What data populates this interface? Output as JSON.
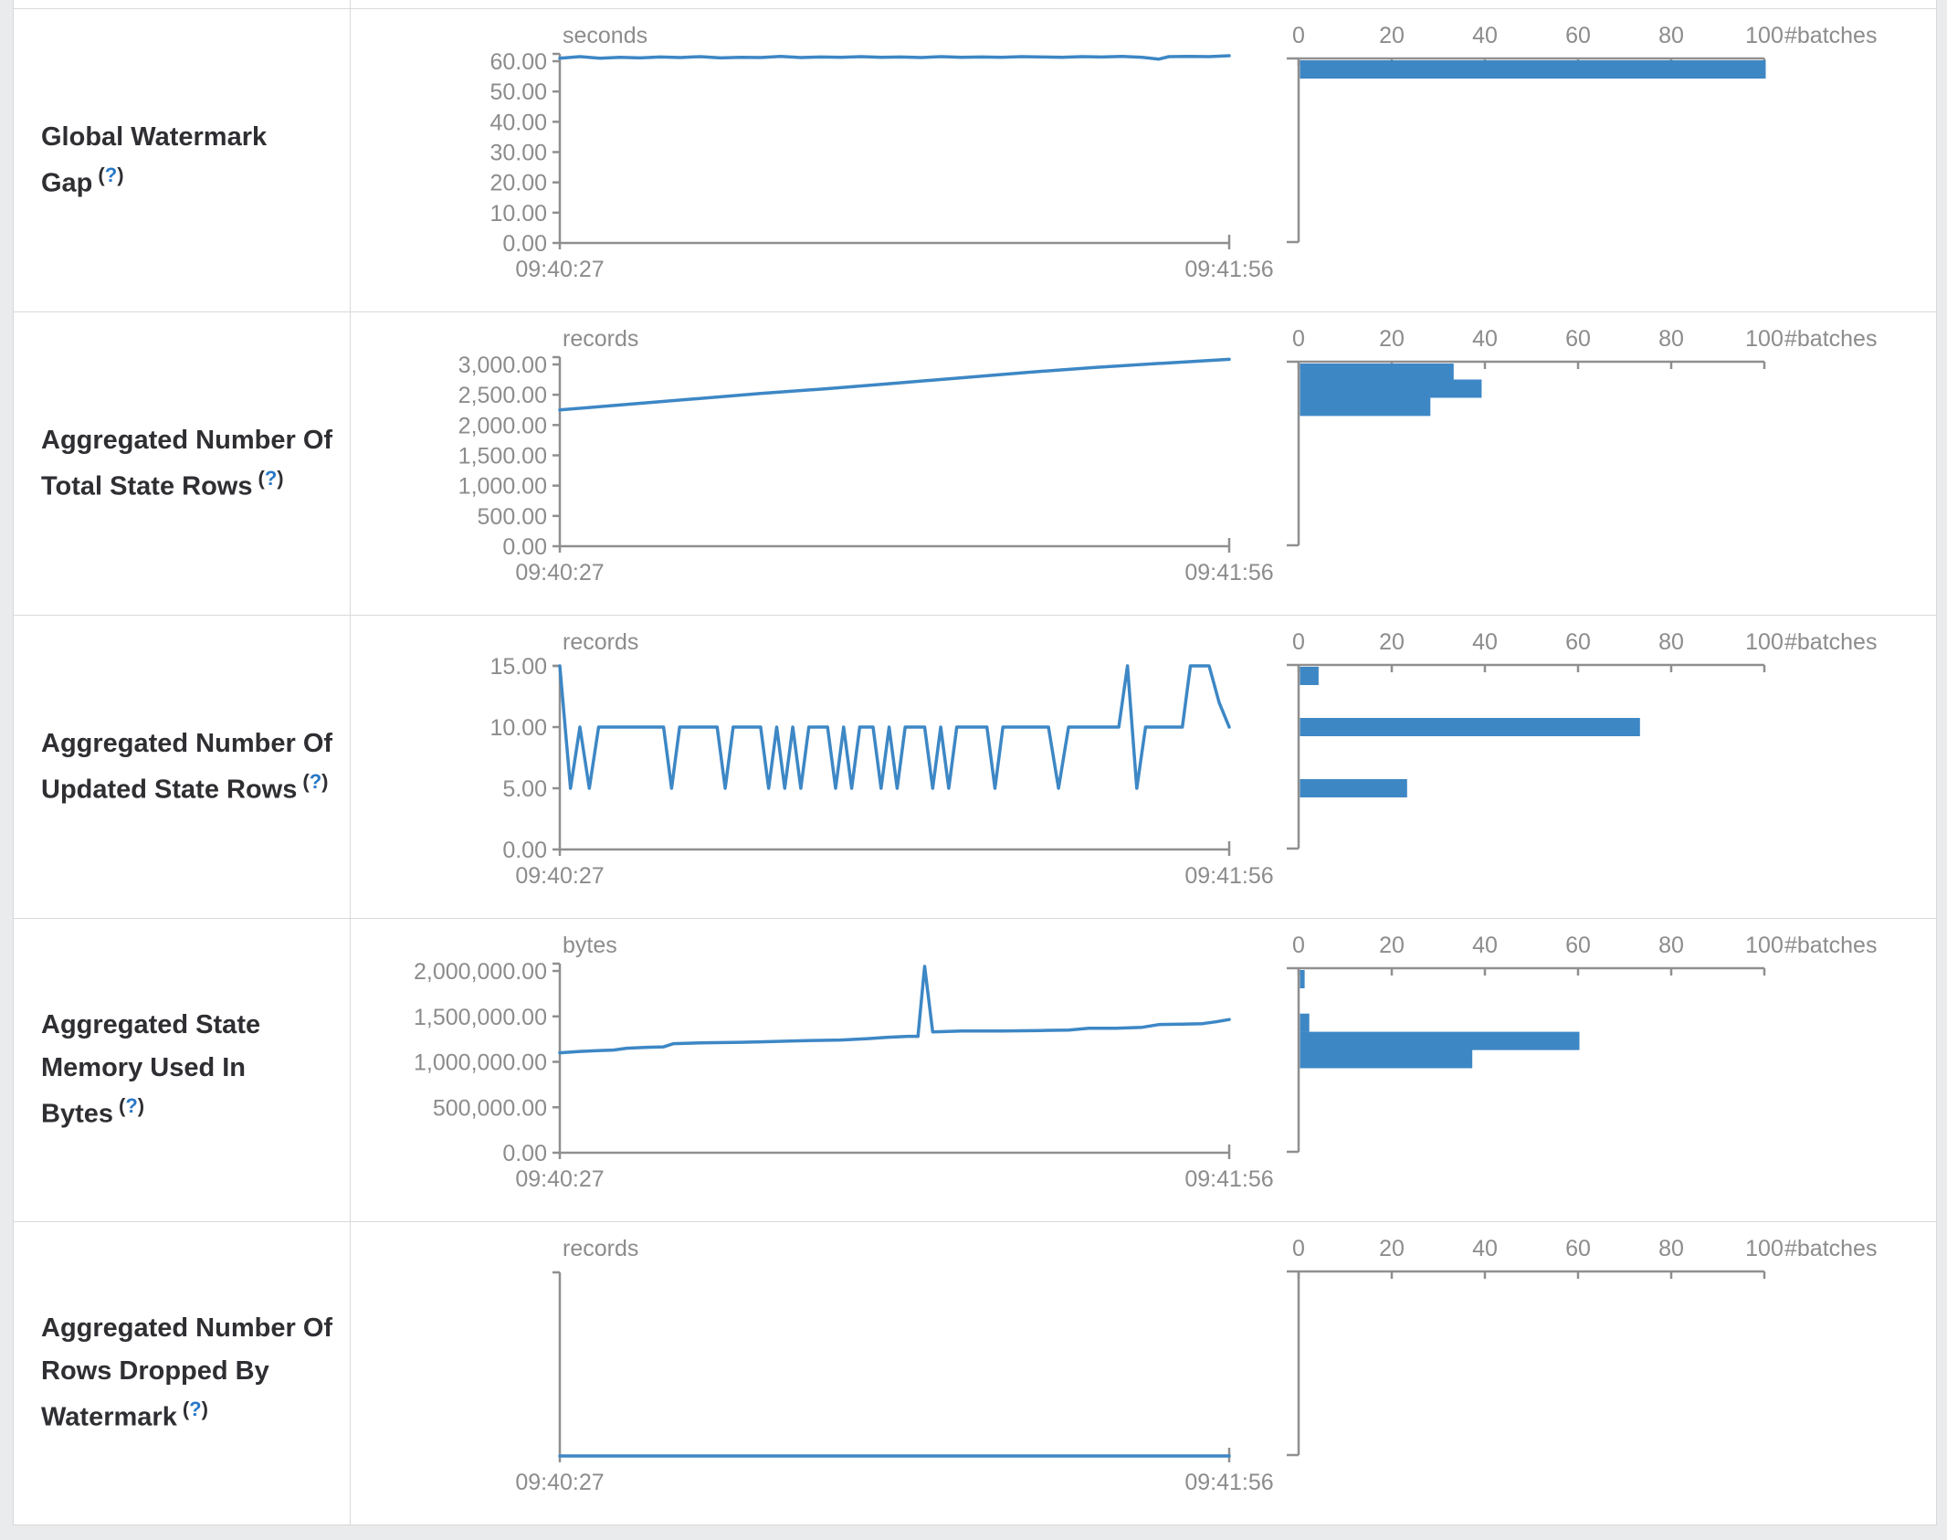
{
  "ui": {
    "help_open": "(",
    "help_q": "?",
    "help_close": ")"
  },
  "colors": {
    "accent": "#3d87c5",
    "axis_line": "#8f8f8f",
    "tick_text": "#8c8c8c",
    "label_text": "#2f2f33",
    "help_blue": "#2878c8",
    "border": "#d9d9d9",
    "page_background": "#e9ebed",
    "table_background": "#ffffff"
  },
  "histogram_axis": {
    "tick_labels": [
      "0",
      "20",
      "40",
      "60",
      "80",
      "100"
    ],
    "max": 100,
    "label": "#batches"
  },
  "chart_data": [
    {
      "type": "line+histogram",
      "label": "Global Watermark Gap",
      "units": "seconds",
      "x_start": "09:40:27",
      "x_end": "09:41:56",
      "y_scale_top_value": 60,
      "y_ticks": [
        {
          "value": 60,
          "label": "60.00"
        },
        {
          "value": 50,
          "label": "50.00"
        },
        {
          "value": 40,
          "label": "40.00"
        },
        {
          "value": 30,
          "label": "30.00"
        },
        {
          "value": 20,
          "label": "20.00"
        },
        {
          "value": 10,
          "label": "10.00"
        },
        {
          "value": 0,
          "label": "0.00"
        }
      ],
      "series": [
        [
          0,
          61.0
        ],
        [
          0.03,
          61.5
        ],
        [
          0.06,
          61.0
        ],
        [
          0.09,
          61.3
        ],
        [
          0.12,
          61.1
        ],
        [
          0.15,
          61.4
        ],
        [
          0.18,
          61.2
        ],
        [
          0.21,
          61.5
        ],
        [
          0.24,
          61.1
        ],
        [
          0.27,
          61.3
        ],
        [
          0.3,
          61.2
        ],
        [
          0.33,
          61.6
        ],
        [
          0.36,
          61.2
        ],
        [
          0.39,
          61.4
        ],
        [
          0.42,
          61.3
        ],
        [
          0.45,
          61.5
        ],
        [
          0.48,
          61.3
        ],
        [
          0.51,
          61.4
        ],
        [
          0.54,
          61.2
        ],
        [
          0.57,
          61.5
        ],
        [
          0.6,
          61.3
        ],
        [
          0.63,
          61.4
        ],
        [
          0.66,
          61.3
        ],
        [
          0.69,
          61.5
        ],
        [
          0.72,
          61.4
        ],
        [
          0.75,
          61.3
        ],
        [
          0.78,
          61.5
        ],
        [
          0.81,
          61.4
        ],
        [
          0.84,
          61.6
        ],
        [
          0.87,
          61.3
        ],
        [
          0.895,
          60.7
        ],
        [
          0.91,
          61.5
        ],
        [
          0.94,
          61.6
        ],
        [
          0.97,
          61.5
        ],
        [
          1,
          61.8
        ]
      ],
      "histogram_bars": [
        {
          "count": 100,
          "bin": 61
        }
      ]
    },
    {
      "type": "line+histogram",
      "label": "Aggregated Number Of Total State Rows",
      "units": "records",
      "x_start": "09:40:27",
      "x_end": "09:41:56",
      "y_scale_top_value": 3000,
      "y_ticks": [
        {
          "value": 3000,
          "label": "3,000.00"
        },
        {
          "value": 2500,
          "label": "2,500.00"
        },
        {
          "value": 2000,
          "label": "2,000.00"
        },
        {
          "value": 1500,
          "label": "1,500.00"
        },
        {
          "value": 1000,
          "label": "1,000.00"
        },
        {
          "value": 500,
          "label": "500.00"
        },
        {
          "value": 0,
          "label": "0.00"
        }
      ],
      "series": [
        [
          0,
          2250
        ],
        [
          0.1,
          2340
        ],
        [
          0.2,
          2430
        ],
        [
          0.3,
          2520
        ],
        [
          0.4,
          2600
        ],
        [
          0.5,
          2690
        ],
        [
          0.6,
          2780
        ],
        [
          0.7,
          2870
        ],
        [
          0.8,
          2950
        ],
        [
          0.9,
          3020
        ],
        [
          1,
          3085
        ]
      ],
      "histogram_bars": [
        {
          "count": 33,
          "bin": 2900
        },
        {
          "count": 39,
          "bin": 2600
        },
        {
          "count": 28,
          "bin": 2300
        }
      ]
    },
    {
      "type": "line+histogram",
      "label": "Aggregated Number Of Updated State Rows",
      "units": "records",
      "x_start": "09:40:27",
      "x_end": "09:41:56",
      "y_scale_top_value": 15,
      "y_ticks": [
        {
          "value": 15,
          "label": "15.00"
        },
        {
          "value": 10,
          "label": "10.00"
        },
        {
          "value": 5,
          "label": "5.00"
        },
        {
          "value": 0,
          "label": "0.00"
        }
      ],
      "series": [
        [
          0,
          15
        ],
        [
          0.016,
          5
        ],
        [
          0.03,
          10
        ],
        [
          0.044,
          5
        ],
        [
          0.058,
          10
        ],
        [
          0.155,
          10
        ],
        [
          0.167,
          5
        ],
        [
          0.179,
          10
        ],
        [
          0.235,
          10
        ],
        [
          0.247,
          5
        ],
        [
          0.259,
          10
        ],
        [
          0.3,
          10
        ],
        [
          0.312,
          5
        ],
        [
          0.324,
          10
        ],
        [
          0.336,
          5
        ],
        [
          0.348,
          10
        ],
        [
          0.36,
          5
        ],
        [
          0.372,
          10
        ],
        [
          0.4,
          10
        ],
        [
          0.412,
          5
        ],
        [
          0.424,
          10
        ],
        [
          0.436,
          5
        ],
        [
          0.448,
          10
        ],
        [
          0.468,
          10
        ],
        [
          0.48,
          5
        ],
        [
          0.492,
          10
        ],
        [
          0.504,
          5
        ],
        [
          0.516,
          10
        ],
        [
          0.545,
          10
        ],
        [
          0.557,
          5
        ],
        [
          0.569,
          10
        ],
        [
          0.581,
          5
        ],
        [
          0.593,
          10
        ],
        [
          0.638,
          10
        ],
        [
          0.65,
          5
        ],
        [
          0.662,
          10
        ],
        [
          0.73,
          10
        ],
        [
          0.745,
          5
        ],
        [
          0.76,
          10
        ],
        [
          0.835,
          10
        ],
        [
          0.848,
          15
        ],
        [
          0.862,
          5
        ],
        [
          0.875,
          10
        ],
        [
          0.93,
          10
        ],
        [
          0.942,
          15
        ],
        [
          0.97,
          15
        ],
        [
          0.985,
          12
        ],
        [
          1,
          10
        ]
      ],
      "histogram_bars": [
        {
          "count": 4,
          "bin": 15
        },
        {
          "count": 73,
          "bin": 10
        },
        {
          "count": 23,
          "bin": 5
        }
      ]
    },
    {
      "type": "line+histogram",
      "label": "Aggregated State Memory Used In Bytes",
      "units": "bytes",
      "x_start": "09:40:27",
      "x_end": "09:41:56",
      "y_scale_top_value": 2000000,
      "y_ticks": [
        {
          "value": 2000000,
          "label": "2,000,000.00"
        },
        {
          "value": 1500000,
          "label": "1,500,000.00"
        },
        {
          "value": 1000000,
          "label": "1,000,000.00"
        },
        {
          "value": 500000,
          "label": "500,000.00"
        },
        {
          "value": 0,
          "label": "0.00"
        }
      ],
      "series": [
        [
          0,
          1100000
        ],
        [
          0.03,
          1115000
        ],
        [
          0.06,
          1125000
        ],
        [
          0.08,
          1130000
        ],
        [
          0.1,
          1150000
        ],
        [
          0.13,
          1160000
        ],
        [
          0.155,
          1165000
        ],
        [
          0.17,
          1200000
        ],
        [
          0.22,
          1210000
        ],
        [
          0.27,
          1215000
        ],
        [
          0.3,
          1220000
        ],
        [
          0.35,
          1230000
        ],
        [
          0.38,
          1235000
        ],
        [
          0.42,
          1240000
        ],
        [
          0.46,
          1255000
        ],
        [
          0.49,
          1270000
        ],
        [
          0.52,
          1280000
        ],
        [
          0.535,
          1280000
        ],
        [
          0.545,
          2050000
        ],
        [
          0.557,
          1330000
        ],
        [
          0.6,
          1340000
        ],
        [
          0.66,
          1340000
        ],
        [
          0.72,
          1345000
        ],
        [
          0.76,
          1350000
        ],
        [
          0.79,
          1370000
        ],
        [
          0.83,
          1370000
        ],
        [
          0.87,
          1380000
        ],
        [
          0.895,
          1410000
        ],
        [
          0.93,
          1415000
        ],
        [
          0.96,
          1420000
        ],
        [
          0.98,
          1440000
        ],
        [
          1,
          1465000
        ]
      ],
      "histogram_bars": [
        {
          "count": 1,
          "bin": 2000000
        },
        {
          "count": 2,
          "bin": 1430000
        },
        {
          "count": 60,
          "bin": 1230000
        },
        {
          "count": 37,
          "bin": 1030000
        }
      ]
    },
    {
      "type": "line+histogram",
      "label": "Aggregated Number Of Rows Dropped By Watermark",
      "units": "records",
      "x_start": "09:40:27",
      "x_end": "09:41:56",
      "y_scale_top_value": 1,
      "y_ticks": [],
      "series": [
        [
          0,
          0
        ],
        [
          1,
          0
        ]
      ],
      "histogram_bars": []
    }
  ]
}
